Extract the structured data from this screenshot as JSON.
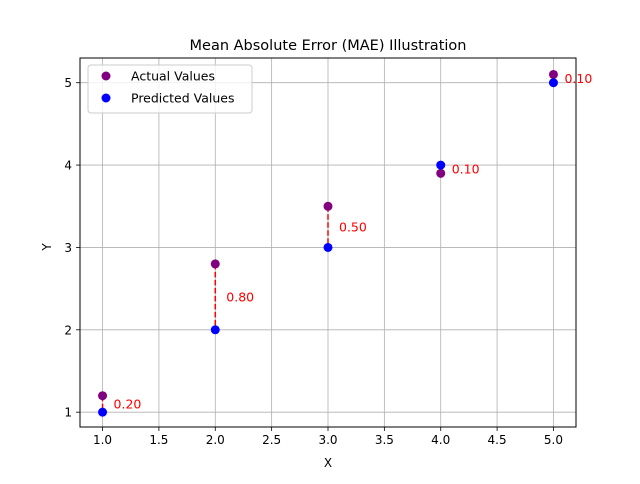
{
  "chart_data": {
    "type": "scatter",
    "title": "Mean Absolute Error (MAE) Illustration",
    "xlabel": "X",
    "ylabel": "Y",
    "xlim": [
      0.8,
      5.2
    ],
    "ylim": [
      0.82,
      5.3
    ],
    "xticks": [
      1.0,
      1.5,
      2.0,
      2.5,
      3.0,
      3.5,
      4.0,
      4.5,
      5.0
    ],
    "xtick_labels": [
      "1.0",
      "1.5",
      "2.0",
      "2.5",
      "3.0",
      "3.5",
      "4.0",
      "4.5",
      "5.0"
    ],
    "yticks": [
      1,
      2,
      3,
      4,
      5
    ],
    "ytick_labels": [
      "1",
      "2",
      "3",
      "4",
      "5"
    ],
    "grid": true,
    "legend": {
      "placement": "top-left"
    },
    "x": [
      1,
      2,
      3,
      4,
      5
    ],
    "series": [
      {
        "name": "Actual Values",
        "color": "#800080",
        "values": [
          1.2,
          2.8,
          3.5,
          3.9,
          5.1
        ]
      },
      {
        "name": "Predicted Values",
        "color": "#0000ff",
        "values": [
          1.0,
          2.0,
          3.0,
          4.0,
          5.0
        ]
      }
    ],
    "error_lines": {
      "color": "#ff0000",
      "style": "dashed"
    },
    "annotations": [
      "0.20",
      "0.80",
      "0.50",
      "0.10",
      "0.10"
    ],
    "annotation_color": "#ff0000"
  }
}
